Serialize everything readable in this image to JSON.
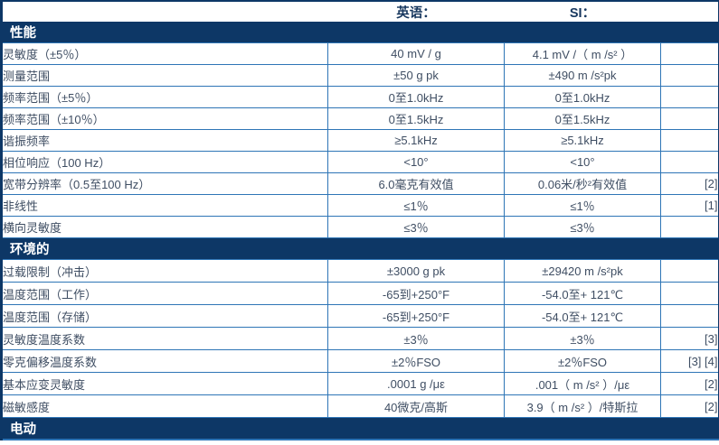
{
  "colors": {
    "section_bar": "#0d3766",
    "grid_border": "#2e75b6",
    "cell_text": "#3f4e63",
    "header_text": "#17375e"
  },
  "table": {
    "columns": {
      "label_header": "",
      "english_header": "英语：",
      "si_header": "SI：",
      "note_header": ""
    },
    "sections": [
      {
        "title": "性能",
        "rows": [
          {
            "label": "灵敏度（±5％）",
            "english": "40 mV / g",
            "si": "4.1 mV /（ m /s² ）",
            "note": ""
          },
          {
            "label": "测量范围",
            "english": "±50 g pk",
            "si": "±490 m /s²pk",
            "note": ""
          },
          {
            "label": "频率范围（±5％）",
            "english": "0至1.0kHz",
            "si": "0至1.0kHz",
            "note": ""
          },
          {
            "label": "频率范围（±10％）",
            "english": "0至1.5kHz",
            "si": "0至1.5kHz",
            "note": ""
          },
          {
            "label": "谐振频率",
            "english": "≥5.1kHz",
            "si": "≥5.1kHz",
            "note": ""
          },
          {
            "label": "相位响应（100 Hz）",
            "english": "<10°",
            "si": "<10°",
            "note": ""
          },
          {
            "label": "宽带分辨率（0.5至100 Hz）",
            "english": "6.0毫克有效值",
            "si": "0.06米/秒²有效值",
            "note": "[2]"
          },
          {
            "label": "非线性",
            "english": "≤1％",
            "si": "≤1％",
            "note": "[1]"
          },
          {
            "label": "横向灵敏度",
            "english": "≤3％",
            "si": "≤3％",
            "note": ""
          }
        ]
      },
      {
        "title": "环境的",
        "rows": [
          {
            "label": "过载限制（冲击）",
            "english": "±3000 g pk",
            "si": "±29420 m /s²pk",
            "note": ""
          },
          {
            "label": "温度范围（工作）",
            "english": "-65到+250°F",
            "si": "-54.0至+ 121℃",
            "note": ""
          },
          {
            "label": "温度范围（存储）",
            "english": "-65到+250°F",
            "si": "-54.0至+ 121℃",
            "note": ""
          },
          {
            "label": "灵敏度温度系数",
            "english": "±3％",
            "si": "±3％",
            "note": "[3]"
          },
          {
            "label": "零克偏移温度系数",
            "english": "±2％FSO",
            "si": "±2％FSO",
            "note": "[3] [4]"
          },
          {
            "label": "基本应变灵敏度",
            "english": ".0001 g /με",
            "si": ".001（ m /s² ）/με",
            "note": "[2]"
          },
          {
            "label": "磁敏感度",
            "english": "40微克/高斯",
            "si": "3.9（ m /s² ）/特斯拉",
            "note": "[2]"
          }
        ]
      },
      {
        "title": "电动",
        "rows": []
      }
    ]
  }
}
